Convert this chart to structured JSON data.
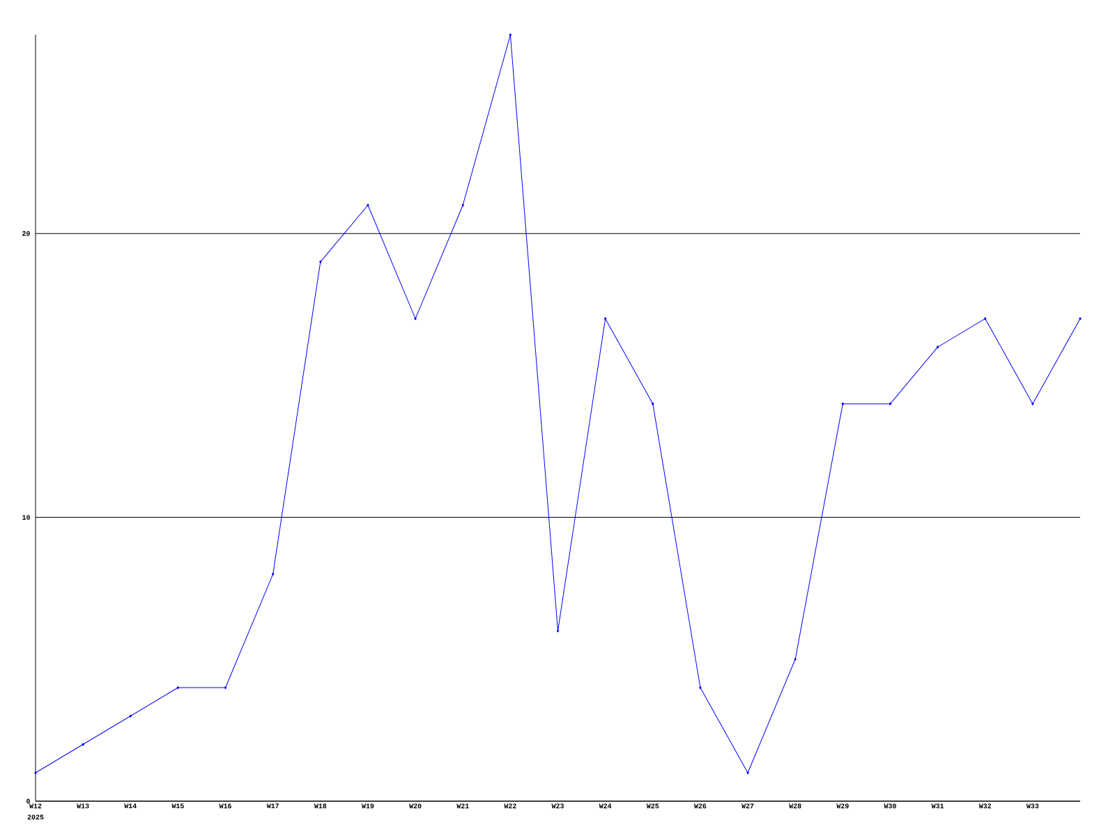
{
  "chart_data": {
    "type": "line",
    "categories": [
      "W12",
      "W13",
      "W14",
      "W15",
      "W16",
      "W17",
      "W18",
      "W19",
      "W20",
      "W21",
      "W22",
      "W23",
      "W24",
      "W25",
      "W26",
      "W27",
      "W28",
      "W29",
      "W30",
      "W31",
      "W32",
      "W33",
      null
    ],
    "values": [
      1,
      2,
      3,
      4,
      4,
      8,
      19,
      21,
      17,
      21,
      27,
      6,
      17,
      14,
      4,
      1,
      5,
      14,
      14,
      16,
      17,
      14,
      17
    ],
    "color": "#0000ff",
    "marker": "diamond",
    "ylim": [
      0,
      27
    ],
    "yticks": [
      0,
      10,
      20
    ],
    "grid": "y",
    "annotations": [
      "2025"
    ]
  }
}
